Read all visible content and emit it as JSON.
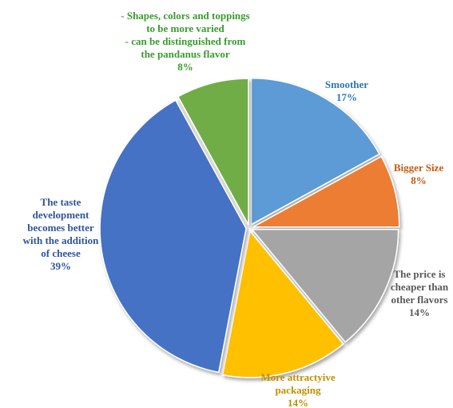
{
  "chart_data": {
    "type": "pie",
    "title": "",
    "slices": [
      {
        "label_lines": [
          "Smoother"
        ],
        "value": 17,
        "value_label": "17%",
        "color": "#5B9BD5",
        "label_color": "#2E75B6"
      },
      {
        "label_lines": [
          "Bigger Size"
        ],
        "value": 8,
        "value_label": "8%",
        "color": "#ED7D31",
        "label_color": "#C55A11"
      },
      {
        "label_lines": [
          "The price is",
          "cheaper than",
          "other flavors"
        ],
        "value": 14,
        "value_label": "14%",
        "color": "#A5A5A5",
        "label_color": "#595959"
      },
      {
        "label_lines": [
          "More attractyive",
          "packaging"
        ],
        "value": 14,
        "value_label": "14%",
        "color": "#FFC000",
        "label_color": "#BF9000"
      },
      {
        "label_lines": [
          "The taste",
          "development",
          "becomes better",
          "with the addition",
          "of cheese"
        ],
        "value": 39,
        "value_label": "39%",
        "color": "#4472C4",
        "label_color": "#2F5597"
      },
      {
        "label_lines": [
          "- Shapes, colors and toppings",
          "to be more varied",
          "- can be distinguished from",
          "the pandanus flavor"
        ],
        "value": 8,
        "value_label": "8%",
        "color": "#70AD47",
        "label_color": "#3A9B2F"
      }
    ]
  }
}
